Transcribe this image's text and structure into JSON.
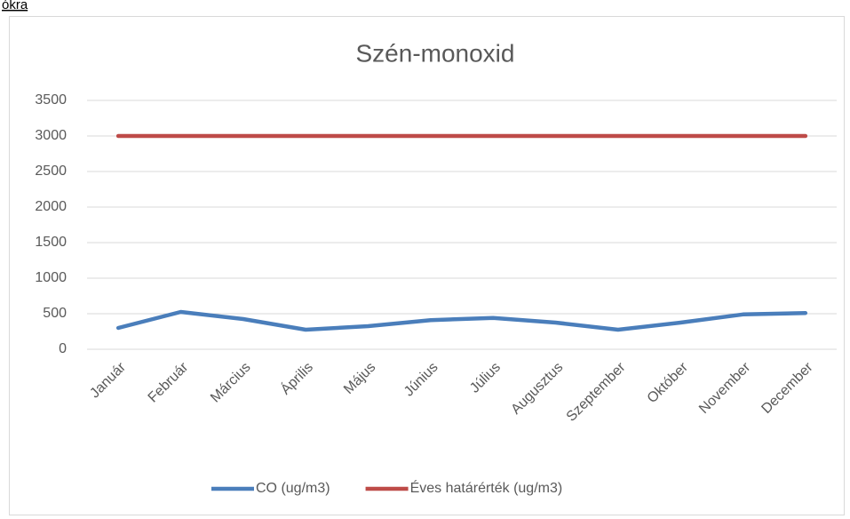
{
  "header": {
    "text": "ókra"
  },
  "chart_data": {
    "type": "line",
    "title": "Szén-monoxid",
    "categories": [
      "Január",
      "Február",
      "Március",
      "Április",
      "Május",
      "Június",
      "Július",
      "Augusztus",
      "Szeptember",
      "Október",
      "November",
      "December"
    ],
    "series": [
      {
        "name": "CO  (ug/m3)",
        "color": "#4a7ebb",
        "values": [
          300,
          525,
          425,
          275,
          325,
          410,
          440,
          375,
          275,
          375,
          490,
          510
        ]
      },
      {
        "name": "Éves határérték (ug/m3)",
        "color": "#be4b48",
        "values": [
          3000,
          3000,
          3000,
          3000,
          3000,
          3000,
          3000,
          3000,
          3000,
          3000,
          3000,
          3000
        ]
      }
    ],
    "ylim": [
      0,
      3500
    ],
    "yticks": [
      0,
      500,
      1000,
      1500,
      2000,
      2500,
      3000,
      3500
    ],
    "grid": true,
    "legend": "bottom"
  }
}
